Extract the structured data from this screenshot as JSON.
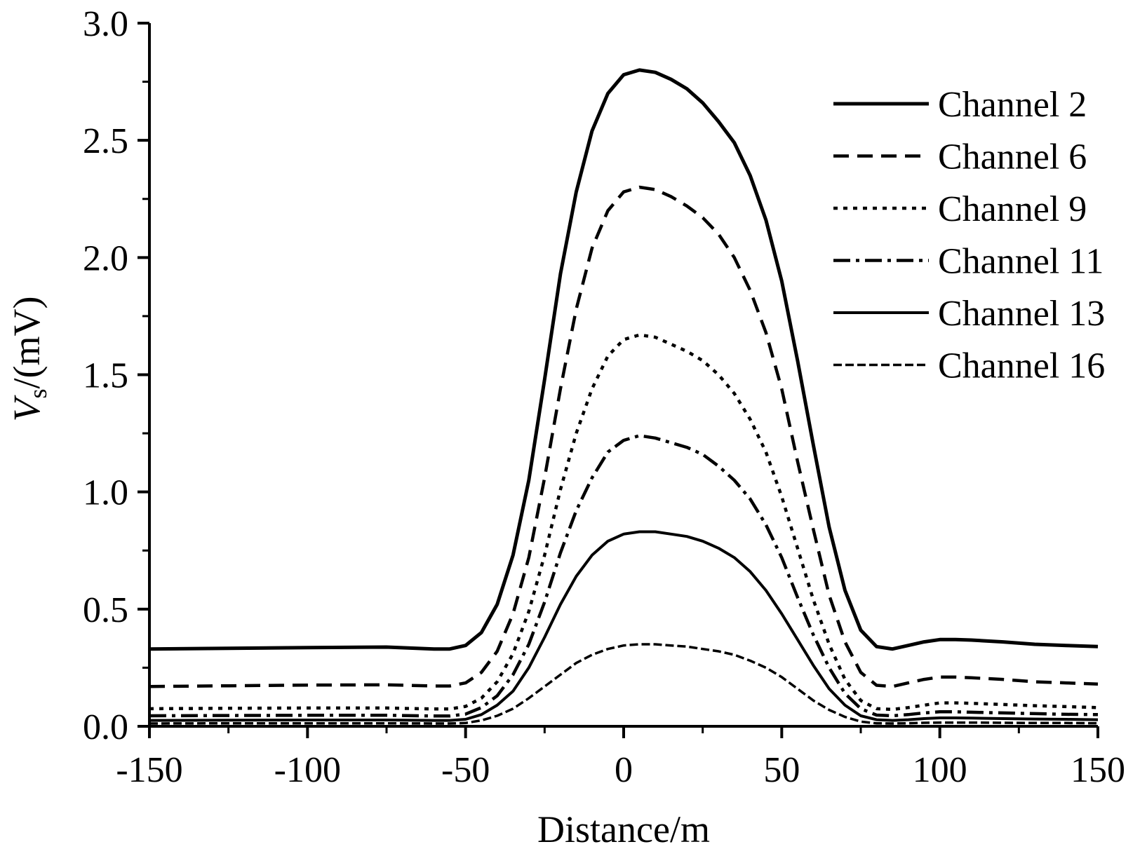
{
  "chart_data": {
    "type": "line",
    "xlabel": "Distance/m",
    "ylabel_main": "V",
    "ylabel_sub": "s",
    "ylabel_suffix": "/(mV)",
    "xlim": [
      -150,
      150
    ],
    "ylim": [
      0,
      3.0
    ],
    "xticks": [
      -150,
      -100,
      -50,
      0,
      50,
      100,
      150
    ],
    "xtick_labels": [
      "-150",
      "-100",
      "-50",
      "0",
      "50",
      "100",
      "150"
    ],
    "yticks": [
      0,
      0.5,
      1.0,
      1.5,
      2.0,
      2.5,
      3.0
    ],
    "ytick_labels": [
      "0.0",
      "0.5",
      "1.0",
      "1.5",
      "2.0",
      "2.5",
      "3.0"
    ],
    "grid": false,
    "legend_position": "top-right",
    "x": [
      -150,
      -125,
      -100,
      -75,
      -60,
      -55,
      -50,
      -45,
      -40,
      -35,
      -30,
      -25,
      -20,
      -15,
      -10,
      -5,
      0,
      5,
      10,
      15,
      20,
      25,
      30,
      35,
      40,
      45,
      50,
      55,
      60,
      65,
      70,
      75,
      80,
      85,
      90,
      95,
      100,
      105,
      110,
      120,
      130,
      140,
      150
    ],
    "series": [
      {
        "name": "Channel 2",
        "values": [
          0.33,
          0.333,
          0.336,
          0.338,
          0.33,
          0.33,
          0.345,
          0.4,
          0.52,
          0.73,
          1.05,
          1.48,
          1.93,
          2.28,
          2.54,
          2.7,
          2.78,
          2.8,
          2.79,
          2.76,
          2.72,
          2.66,
          2.58,
          2.49,
          2.35,
          2.16,
          1.9,
          1.56,
          1.2,
          0.85,
          0.58,
          0.41,
          0.34,
          0.33,
          0.345,
          0.36,
          0.37,
          0.37,
          0.368,
          0.36,
          0.35,
          0.345,
          0.34
        ]
      },
      {
        "name": "Channel 6",
        "values": [
          0.17,
          0.173,
          0.176,
          0.177,
          0.172,
          0.172,
          0.185,
          0.23,
          0.32,
          0.48,
          0.72,
          1.06,
          1.44,
          1.78,
          2.04,
          2.2,
          2.28,
          2.3,
          2.29,
          2.26,
          2.22,
          2.17,
          2.1,
          2.0,
          1.86,
          1.68,
          1.44,
          1.13,
          0.84,
          0.56,
          0.36,
          0.23,
          0.175,
          0.17,
          0.185,
          0.2,
          0.21,
          0.21,
          0.207,
          0.2,
          0.19,
          0.185,
          0.18
        ]
      },
      {
        "name": "Channel 9",
        "values": [
          0.075,
          0.077,
          0.078,
          0.078,
          0.074,
          0.074,
          0.085,
          0.12,
          0.19,
          0.31,
          0.49,
          0.73,
          1.01,
          1.25,
          1.44,
          1.58,
          1.65,
          1.67,
          1.66,
          1.63,
          1.6,
          1.56,
          1.5,
          1.42,
          1.31,
          1.17,
          0.98,
          0.76,
          0.54,
          0.35,
          0.2,
          0.11,
          0.075,
          0.072,
          0.08,
          0.09,
          0.1,
          0.1,
          0.098,
          0.093,
          0.088,
          0.084,
          0.08
        ]
      },
      {
        "name": "Channel 11",
        "values": [
          0.045,
          0.046,
          0.047,
          0.047,
          0.044,
          0.044,
          0.052,
          0.08,
          0.13,
          0.22,
          0.35,
          0.53,
          0.74,
          0.92,
          1.06,
          1.17,
          1.22,
          1.24,
          1.23,
          1.21,
          1.19,
          1.16,
          1.11,
          1.05,
          0.97,
          0.86,
          0.72,
          0.55,
          0.39,
          0.25,
          0.14,
          0.075,
          0.048,
          0.045,
          0.05,
          0.057,
          0.062,
          0.062,
          0.06,
          0.057,
          0.054,
          0.051,
          0.05
        ]
      },
      {
        "name": "Channel 13",
        "values": [
          0.025,
          0.026,
          0.027,
          0.027,
          0.025,
          0.025,
          0.03,
          0.05,
          0.09,
          0.15,
          0.25,
          0.38,
          0.52,
          0.64,
          0.73,
          0.79,
          0.82,
          0.83,
          0.83,
          0.82,
          0.81,
          0.79,
          0.76,
          0.72,
          0.66,
          0.58,
          0.48,
          0.37,
          0.26,
          0.16,
          0.09,
          0.045,
          0.028,
          0.025,
          0.028,
          0.033,
          0.036,
          0.036,
          0.035,
          0.033,
          0.031,
          0.03,
          0.028
        ]
      },
      {
        "name": "Channel 16",
        "values": [
          0.012,
          0.013,
          0.013,
          0.013,
          0.012,
          0.012,
          0.014,
          0.025,
          0.045,
          0.075,
          0.12,
          0.17,
          0.22,
          0.27,
          0.305,
          0.33,
          0.345,
          0.35,
          0.35,
          0.345,
          0.34,
          0.33,
          0.32,
          0.305,
          0.28,
          0.25,
          0.21,
          0.16,
          0.11,
          0.07,
          0.04,
          0.02,
          0.013,
          0.012,
          0.013,
          0.015,
          0.016,
          0.016,
          0.016,
          0.015,
          0.014,
          0.014,
          0.013
        ]
      }
    ]
  },
  "styles": {
    "line_color": "#000000",
    "series_dash": [
      "",
      "22 12",
      "6 8",
      "24 8 5 8",
      "",
      "12 5"
    ],
    "series_width": [
      5,
      4.5,
      4.5,
      4.5,
      4,
      3.5
    ]
  }
}
